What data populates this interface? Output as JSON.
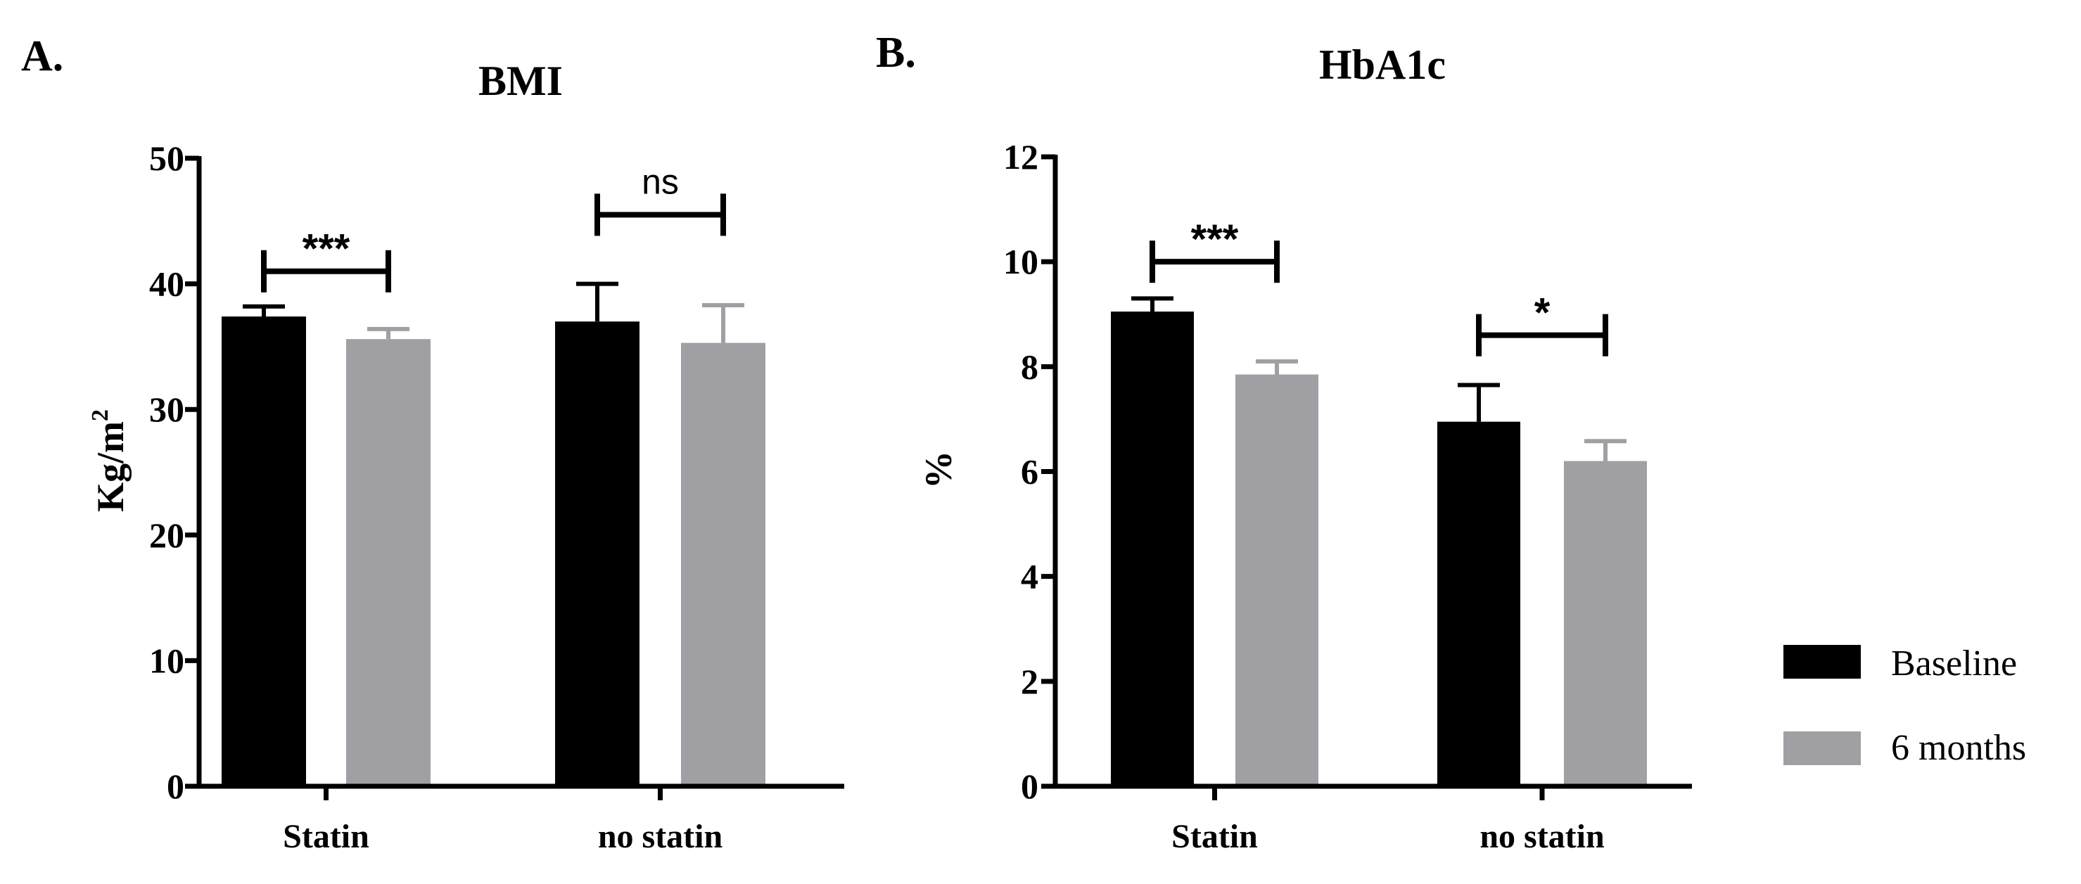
{
  "chart_data": [
    {
      "panel": "A.",
      "type": "bar",
      "title": "BMI",
      "ylabel": "Kg/m",
      "ylabel_sup": "2",
      "ylim": [
        0,
        50
      ],
      "yticks": [
        0,
        10,
        20,
        30,
        40,
        50
      ],
      "categories": [
        "Statin",
        "no statin"
      ],
      "series": [
        {
          "name": "Baseline",
          "values": [
            37.4,
            37.0
          ],
          "errors": [
            0.8,
            3.0
          ]
        },
        {
          "name": "6 months",
          "values": [
            35.6,
            35.3
          ],
          "errors": [
            0.8,
            3.0
          ]
        }
      ],
      "significance": [
        {
          "category": 0,
          "label": "***",
          "y": 41
        },
        {
          "category": 1,
          "label": "ns",
          "y": 45.5
        }
      ]
    },
    {
      "panel": "B.",
      "type": "bar",
      "title": "HbA1c",
      "ylabel": "%",
      "ylim": [
        0,
        12
      ],
      "yticks": [
        0,
        2,
        4,
        6,
        8,
        10,
        12
      ],
      "categories": [
        "Statin",
        "no statin"
      ],
      "series": [
        {
          "name": "Baseline",
          "values": [
            9.05,
            6.95
          ],
          "errors": [
            0.25,
            0.7
          ]
        },
        {
          "name": "6 months",
          "values": [
            7.85,
            6.2
          ],
          "errors": [
            0.25,
            0.38
          ]
        }
      ],
      "significance": [
        {
          "category": 0,
          "label": "***",
          "y": 10
        },
        {
          "category": 1,
          "label": "*",
          "y": 8.6
        }
      ]
    }
  ],
  "legend": {
    "position": "right",
    "items": [
      {
        "label": "Baseline",
        "color": "#000000"
      },
      {
        "label": "6 months",
        "color": "#a0a0a4"
      }
    ]
  },
  "colors": {
    "baseline": "#000000",
    "six_months": "#a0a0a4",
    "axis": "#000000"
  }
}
